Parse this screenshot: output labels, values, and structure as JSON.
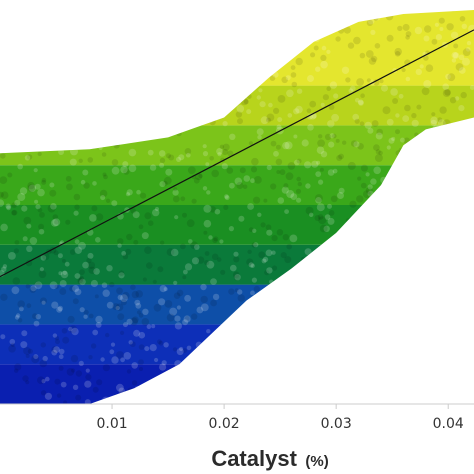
{
  "chart_data": {
    "type": "scatter",
    "title": "",
    "xlabel": "Catalyst",
    "xlabel_unit": "(%)",
    "ylabel": "",
    "xlim": [
      0.0,
      0.0423
    ],
    "ylim": [
      0.0,
      1.0
    ],
    "grid": false,
    "legend": "none",
    "x_ticks": [
      {
        "value": 0.01,
        "label": "0.01"
      },
      {
        "value": 0.02,
        "label": "0.02"
      },
      {
        "value": 0.03,
        "label": "0.03"
      },
      {
        "value": 0.04,
        "label": "0.04"
      }
    ],
    "bands": [
      {
        "y_range": [
          0.0,
          0.1
        ],
        "color": "#0a1fb0"
      },
      {
        "y_range": [
          0.1,
          0.2
        ],
        "color": "#0d2fb8"
      },
      {
        "y_range": [
          0.2,
          0.3
        ],
        "color": "#0e4fa8"
      },
      {
        "y_range": [
          0.3,
          0.4
        ],
        "color": "#0a7a3a"
      },
      {
        "y_range": [
          0.4,
          0.5
        ],
        "color": "#1a8f22"
      },
      {
        "y_range": [
          0.5,
          0.6
        ],
        "color": "#3aa81a"
      },
      {
        "y_range": [
          0.6,
          0.7
        ],
        "color": "#7cc41a"
      },
      {
        "y_range": [
          0.7,
          0.8
        ],
        "color": "#b8d41c"
      },
      {
        "y_range": [
          0.8,
          1.0
        ],
        "color": "#e4e62e"
      }
    ],
    "cloud_upper": [
      [
        0.0,
        0.63
      ],
      [
        0.008,
        0.64
      ],
      [
        0.015,
        0.67
      ],
      [
        0.02,
        0.72
      ],
      [
        0.024,
        0.82
      ],
      [
        0.028,
        0.91
      ],
      [
        0.032,
        0.96
      ],
      [
        0.036,
        0.98
      ],
      [
        0.0423,
        0.99
      ]
    ],
    "cloud_lower": [
      [
        0.0,
        0.0
      ],
      [
        0.008,
        0.0
      ],
      [
        0.012,
        0.04
      ],
      [
        0.016,
        0.1
      ],
      [
        0.019,
        0.18
      ],
      [
        0.022,
        0.26
      ],
      [
        0.026,
        0.34
      ],
      [
        0.03,
        0.43
      ],
      [
        0.034,
        0.55
      ],
      [
        0.036,
        0.65
      ],
      [
        0.038,
        0.69
      ],
      [
        0.0423,
        0.72
      ]
    ],
    "trend_line": {
      "x": [
        0.0,
        0.0423
      ],
      "y": [
        0.32,
        0.94
      ],
      "color": "#111111"
    }
  }
}
